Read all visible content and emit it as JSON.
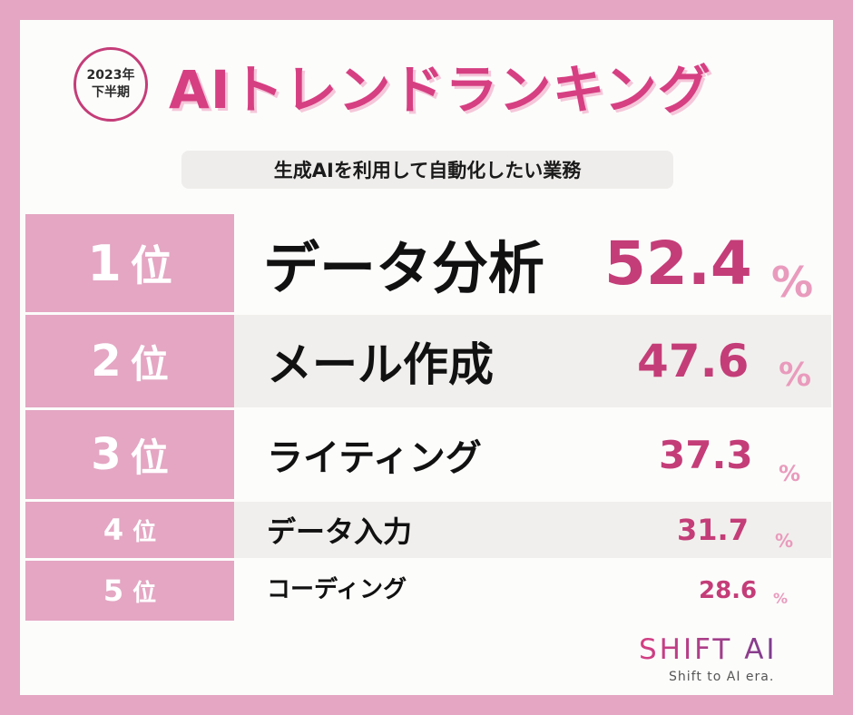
{
  "badge": {
    "line1": "2023年",
    "line2": "下半期"
  },
  "title": "AIトレンドランキング",
  "subtitle": "生成AIを利用して自動化したい業務",
  "rankings": [
    {
      "rank": "1",
      "rank_suffix": "位",
      "label": "データ分析",
      "value": "52.4",
      "unit": "%"
    },
    {
      "rank": "2",
      "rank_suffix": "位",
      "label": "メール作成",
      "value": "47.6",
      "unit": "%"
    },
    {
      "rank": "3",
      "rank_suffix": "位",
      "label": "ライティング",
      "value": "37.3",
      "unit": "%"
    },
    {
      "rank": "4",
      "rank_suffix": "位",
      "label": "データ入力",
      "value": "31.7",
      "unit": "%"
    },
    {
      "rank": "5",
      "rank_suffix": "位",
      "label": "コーディング",
      "value": "28.6",
      "unit": "%"
    }
  ],
  "brand": {
    "logo": "SHIFT AI",
    "tagline": "Shift to AI era."
  },
  "colors": {
    "frame": "#e4a6c3",
    "accent": "#c43d78",
    "title": "#d63f82",
    "percent": "#e99bbd"
  }
}
